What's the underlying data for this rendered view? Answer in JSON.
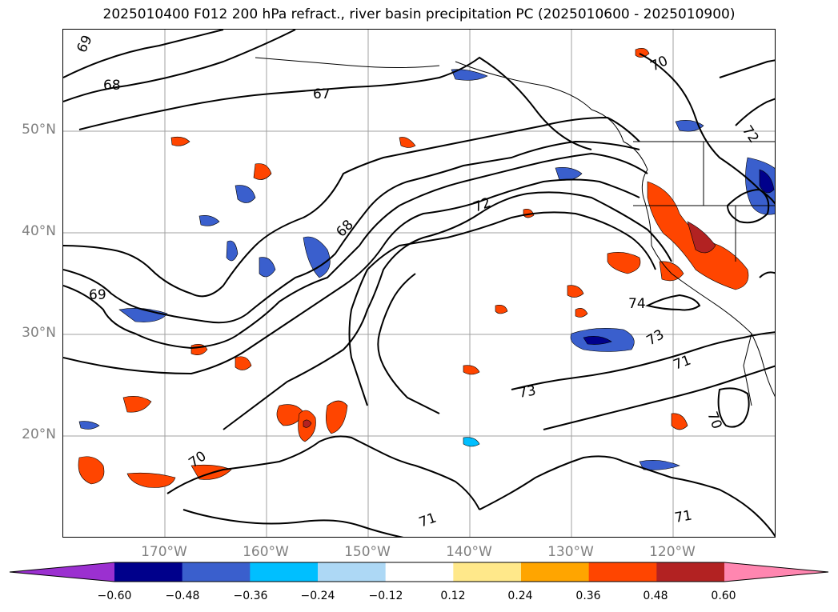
{
  "title": "2025010400 F012 200 hPa refract., river basin precipitation PC (2025010600 - 2025010900)",
  "lat_labels": [
    "50°N",
    "40°N",
    "30°N",
    "20°N"
  ],
  "lon_labels": [
    "170°W",
    "160°W",
    "150°W",
    "140°W",
    "130°W",
    "120°W"
  ],
  "contour_labels": [
    "69",
    "68",
    "67",
    "70",
    "72",
    "72",
    "68",
    "69",
    "74",
    "73",
    "71",
    "73",
    "70",
    "71",
    "71",
    "70"
  ],
  "colorbar": {
    "ticks": [
      "−0.60",
      "−0.48",
      "−0.36",
      "−0.24",
      "−0.12",
      "0.12",
      "0.24",
      "0.36",
      "0.48",
      "0.60"
    ],
    "colors": [
      "#9b30d0",
      "#00008b",
      "#3a5fcd",
      "#00bfff",
      "#add8f5",
      "#ffffff",
      "#ffe88a",
      "#ffa500",
      "#ff4500",
      "#b22222",
      "#ff86b0"
    ]
  }
}
